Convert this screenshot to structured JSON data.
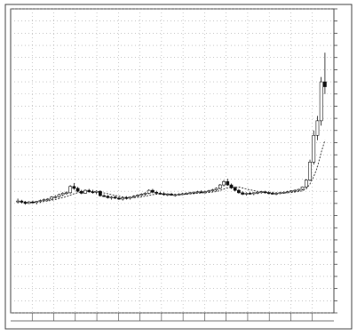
{
  "chart_data": {
    "type": "candlestick",
    "title": "",
    "xlabel": "",
    "ylabel": "",
    "grid": true,
    "ylim": [
      -15,
      110
    ],
    "y_axis_side": "right",
    "colors": {
      "background": "#ffffff",
      "frame": "#444444",
      "grid": "#a8a8a8",
      "up": "#ffffff",
      "down": "#111111",
      "ma": "#333333",
      "text": "#555555"
    },
    "series": [
      {
        "name": "",
        "kind": "candles",
        "ohlc": [
          [
            31,
            32,
            30,
            31
          ],
          [
            31,
            31.5,
            30,
            30.5
          ],
          [
            30.5,
            31,
            29.5,
            30
          ],
          [
            30,
            31,
            29.8,
            30.6
          ],
          [
            30.6,
            31.2,
            30,
            30.4
          ],
          [
            30.4,
            31,
            29.6,
            30.8
          ],
          [
            30.8,
            31.6,
            30.2,
            31.2
          ],
          [
            31.2,
            32,
            30.8,
            31.6
          ],
          [
            31.6,
            32.2,
            31,
            31.8
          ],
          [
            31.8,
            33,
            31.4,
            32.6
          ],
          [
            32.6,
            33.4,
            32,
            32.8
          ],
          [
            32.8,
            34,
            32.4,
            33.6
          ],
          [
            33.6,
            34.6,
            33,
            34.2
          ],
          [
            34.2,
            35,
            33.6,
            34.4
          ],
          [
            34.4,
            37.5,
            34,
            37
          ],
          [
            37,
            38.4,
            35.6,
            36.2
          ],
          [
            36.2,
            36.8,
            34.6,
            35
          ],
          [
            35,
            35.6,
            33.8,
            34.2
          ],
          [
            34.2,
            35.8,
            34,
            35.4
          ],
          [
            35.4,
            36,
            34.4,
            34.8
          ],
          [
            34.8,
            35.6,
            34,
            34.6
          ],
          [
            34.6,
            35.4,
            33.8,
            35
          ],
          [
            35,
            35.4,
            32.8,
            33.2
          ],
          [
            33.2,
            33.8,
            32.6,
            33
          ],
          [
            33,
            33.4,
            32,
            32.4
          ],
          [
            32.4,
            33,
            31.6,
            32.6
          ],
          [
            32.6,
            33.2,
            31.8,
            32.2
          ],
          [
            32.2,
            32.8,
            31.4,
            31.8
          ],
          [
            31.8,
            32.6,
            31.2,
            32.4
          ],
          [
            32.4,
            33,
            31.6,
            32.2
          ],
          [
            32.2,
            32.8,
            31.6,
            32.6
          ],
          [
            32.6,
            33.4,
            32.2,
            33
          ],
          [
            33,
            33.8,
            32.6,
            33.4
          ],
          [
            33.4,
            34.2,
            33,
            33.8
          ],
          [
            33.8,
            34.6,
            33.2,
            34.2
          ],
          [
            34.2,
            35.8,
            33.8,
            35.4
          ],
          [
            35.4,
            36,
            34.2,
            34.6
          ],
          [
            34.6,
            35.2,
            33.8,
            34.2
          ],
          [
            34.2,
            34.8,
            33.6,
            34
          ],
          [
            34,
            34.6,
            33.2,
            33.6
          ],
          [
            33.6,
            34.2,
            33,
            33.8
          ],
          [
            33.8,
            34.4,
            33.2,
            33.4
          ],
          [
            33.4,
            34,
            32.8,
            33.6
          ],
          [
            33.6,
            34.2,
            33.2,
            33.8
          ],
          [
            33.8,
            34.4,
            33.4,
            34
          ],
          [
            34,
            34.6,
            33.6,
            34.2
          ],
          [
            34.2,
            34.8,
            33.8,
            34.4
          ],
          [
            34.4,
            35,
            34,
            34.6
          ],
          [
            34.6,
            35.2,
            34.2,
            34.8
          ],
          [
            34.8,
            35.4,
            34.2,
            34.6
          ],
          [
            34.6,
            35.2,
            34,
            34.8
          ],
          [
            34.8,
            35.6,
            34.4,
            35.2
          ],
          [
            35.2,
            36,
            34.8,
            35.6
          ],
          [
            35.6,
            36.6,
            35,
            36.2
          ],
          [
            36.2,
            38,
            35.8,
            37.6
          ],
          [
            37.6,
            39.6,
            37,
            39
          ],
          [
            39,
            40.2,
            37.2,
            37.6
          ],
          [
            37.6,
            38.2,
            36,
            36.4
          ],
          [
            36.4,
            37,
            35,
            35.4
          ],
          [
            35.4,
            36,
            34,
            34.4
          ],
          [
            34.4,
            35,
            33.4,
            33.8
          ],
          [
            33.8,
            34.6,
            33.2,
            34.2
          ],
          [
            34.2,
            34.8,
            33.6,
            34
          ],
          [
            34,
            34.6,
            33.4,
            34.4
          ],
          [
            34.4,
            35,
            33.8,
            34.6
          ],
          [
            34.6,
            35.2,
            34,
            34.8
          ],
          [
            34.8,
            35.2,
            34,
            34.4
          ],
          [
            34.4,
            35,
            33.8,
            34.2
          ],
          [
            34.2,
            34.8,
            33.6,
            34
          ],
          [
            34,
            34.6,
            33.4,
            34.2
          ],
          [
            34.2,
            34.8,
            33.8,
            34.4
          ],
          [
            34.4,
            35,
            34,
            34.6
          ],
          [
            34.6,
            35.2,
            34.2,
            34.8
          ],
          [
            34.8,
            35.4,
            34.4,
            35.2
          ],
          [
            35.2,
            35.8,
            34.8,
            35.4
          ],
          [
            35.4,
            36,
            35,
            35.8
          ],
          [
            35.8,
            37,
            35.4,
            36.8
          ],
          [
            36.8,
            40,
            36.4,
            39.6
          ],
          [
            39.6,
            48,
            39.2,
            47
          ],
          [
            47,
            60,
            46,
            58
          ],
          [
            58,
            66,
            56,
            64
          ],
          [
            64,
            82,
            62,
            80
          ],
          [
            80,
            92,
            75,
            78
          ]
        ]
      },
      {
        "name": "",
        "kind": "moving-average",
        "values": [
          30.8,
          30.7,
          30.6,
          30.5,
          30.5,
          30.5,
          30.6,
          30.8,
          31,
          31.3,
          31.6,
          32,
          32.4,
          32.8,
          33.4,
          34,
          34.4,
          34.6,
          34.8,
          34.9,
          34.9,
          34.8,
          34.6,
          34.3,
          34,
          33.6,
          33.3,
          33,
          32.7,
          32.5,
          32.4,
          32.4,
          32.5,
          32.7,
          33,
          33.3,
          33.6,
          33.8,
          33.9,
          33.9,
          33.9,
          33.8,
          33.7,
          33.7,
          33.7,
          33.8,
          33.9,
          34,
          34.2,
          34.3,
          34.4,
          34.5,
          34.7,
          34.9,
          35.3,
          35.9,
          36.4,
          36.7,
          36.8,
          36.7,
          36.4,
          36,
          35.6,
          35.3,
          35,
          34.8,
          34.6,
          34.5,
          34.4,
          34.3,
          34.3,
          34.3,
          34.4,
          34.5,
          34.7,
          34.9,
          35.2,
          36,
          38,
          41,
          45,
          51,
          56
        ]
      }
    ],
    "y_ticks": [
      -15,
      -10,
      -5,
      0,
      5,
      10,
      15,
      20,
      25,
      30,
      35,
      40,
      45,
      50,
      55,
      60,
      65,
      70,
      75,
      80,
      85,
      90,
      95,
      100,
      105,
      110
    ]
  }
}
